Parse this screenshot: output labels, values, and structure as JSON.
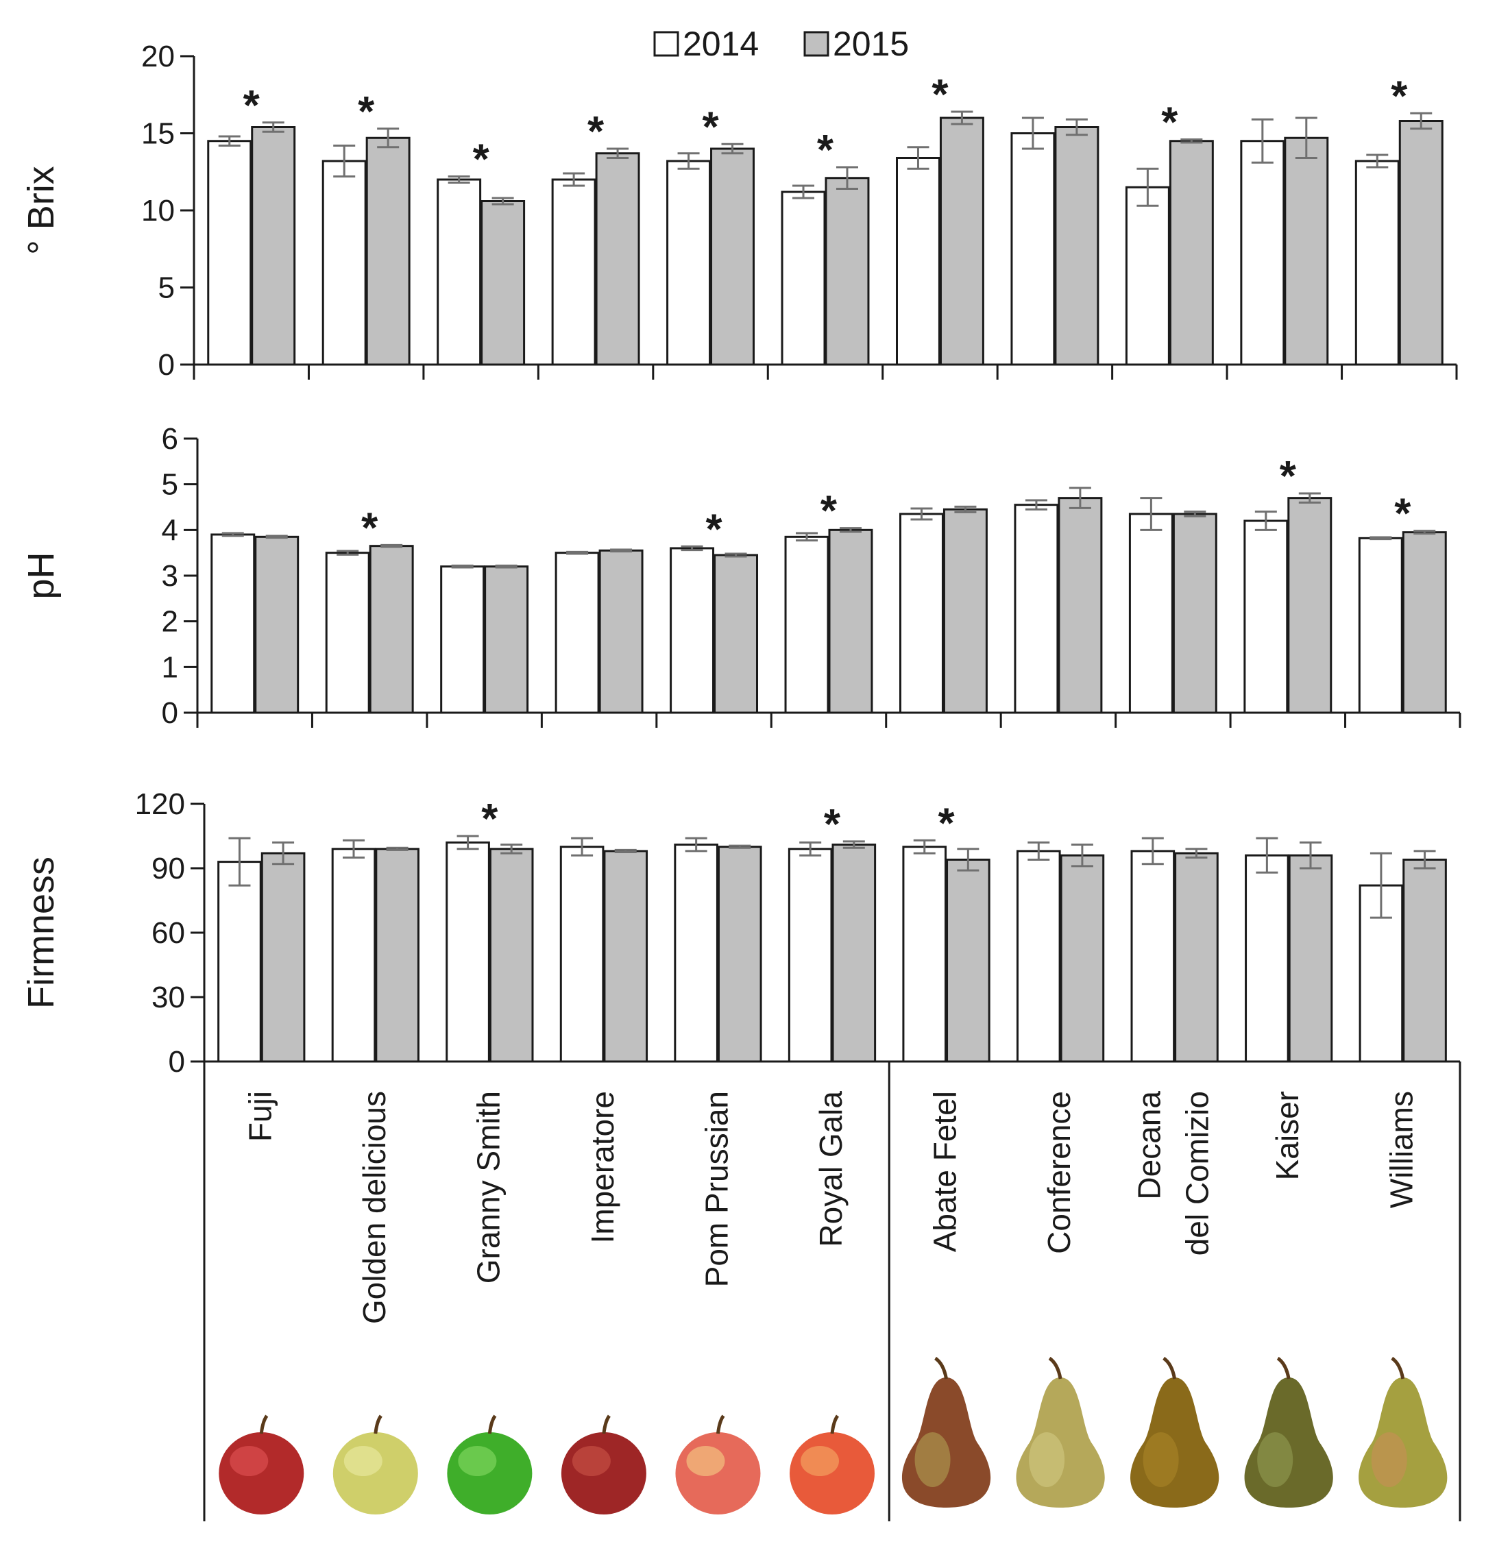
{
  "chart_data": {
    "type": "bar",
    "legend": {
      "position": "top-center",
      "items": [
        {
          "label": "2014",
          "color": "#ffffff"
        },
        {
          "label": "2015",
          "color": "#c0c0c0"
        }
      ]
    },
    "categories": [
      {
        "lines": [
          "Fuji"
        ],
        "fruit": "apple",
        "fruit_color": "#b22a2a",
        "highlight": "#e8575a"
      },
      {
        "lines": [
          "Golden delicious"
        ],
        "fruit": "apple",
        "fruit_color": "#cfcf6a",
        "highlight": "#eeeeaa"
      },
      {
        "lines": [
          "Granny Smith"
        ],
        "fruit": "apple",
        "fruit_color": "#3fae2a",
        "highlight": "#8ee06a"
      },
      {
        "lines": [
          "Imperatore"
        ],
        "fruit": "apple",
        "fruit_color": "#9e2626",
        "highlight": "#d05a4a"
      },
      {
        "lines": [
          "Pom Prussian"
        ],
        "fruit": "apple",
        "fruit_color": "#e66a5a",
        "highlight": "#f5d88a"
      },
      {
        "lines": [
          "Royal Gala"
        ],
        "fruit": "apple",
        "fruit_color": "#e85a3a",
        "highlight": "#f5b56a"
      },
      {
        "lines": [
          "Abate Fetel"
        ],
        "fruit": "pear",
        "fruit_color": "#8a4a2a",
        "highlight": "#b8b05a"
      },
      {
        "lines": [
          "Conference"
        ],
        "fruit": "pear",
        "fruit_color": "#b5a85a",
        "highlight": "#d8cf8a"
      },
      {
        "lines": [
          "Decana",
          "del Comizio"
        ],
        "fruit": "pear",
        "fruit_color": "#8a6a1a",
        "highlight": "#b08a2a"
      },
      {
        "lines": [
          "Kaiser"
        ],
        "fruit": "pear",
        "fruit_color": "#6a6a2a",
        "highlight": "#9aa55a"
      },
      {
        "lines": [
          "Williams"
        ],
        "fruit": "pear",
        "fruit_color": "#a5a040",
        "highlight": "#d08a5a"
      }
    ],
    "panels": [
      {
        "ylabel": "° Brix",
        "ylim": [
          0,
          20
        ],
        "yticks": [
          0,
          5,
          10,
          15,
          20
        ],
        "series": [
          {
            "name": "2014",
            "values": [
              14.5,
              13.2,
              12.0,
              12.0,
              13.2,
              11.2,
              13.4,
              15.0,
              11.5,
              14.5,
              13.2
            ],
            "errors": [
              0.3,
              1.0,
              0.2,
              0.4,
              0.5,
              0.4,
              0.7,
              1.0,
              1.2,
              1.4,
              0.4
            ]
          },
          {
            "name": "2015",
            "values": [
              15.4,
              14.7,
              10.6,
              13.7,
              14.0,
              12.1,
              16.0,
              15.4,
              14.5,
              14.7,
              15.8
            ],
            "errors": [
              0.3,
              0.6,
              0.2,
              0.3,
              0.3,
              0.7,
              0.4,
              0.5,
              0.1,
              1.3,
              0.5
            ]
          }
        ],
        "significant": [
          true,
          true,
          true,
          true,
          true,
          true,
          true,
          false,
          true,
          false,
          true
        ]
      },
      {
        "ylabel": "pH",
        "ylim": [
          0,
          6
        ],
        "yticks": [
          0,
          1,
          2,
          3,
          4,
          5,
          6
        ],
        "series": [
          {
            "name": "2014",
            "values": [
              3.9,
              3.5,
              3.2,
              3.5,
              3.6,
              3.85,
              4.35,
              4.55,
              4.35,
              4.2,
              3.82
            ],
            "errors": [
              0.03,
              0.04,
              0.02,
              0.02,
              0.04,
              0.08,
              0.12,
              0.1,
              0.35,
              0.2,
              0.02
            ]
          },
          {
            "name": "2015",
            "values": [
              3.85,
              3.65,
              3.2,
              3.55,
              3.45,
              4.0,
              4.45,
              4.7,
              4.35,
              4.7,
              3.95
            ],
            "errors": [
              0.02,
              0.02,
              0.02,
              0.02,
              0.03,
              0.04,
              0.06,
              0.22,
              0.05,
              0.1,
              0.03
            ]
          }
        ],
        "significant": [
          false,
          true,
          false,
          false,
          true,
          true,
          false,
          false,
          false,
          true,
          true
        ]
      },
      {
        "ylabel": "Firmness",
        "ylim": [
          0,
          120
        ],
        "yticks": [
          0,
          30,
          60,
          90,
          120
        ],
        "series": [
          {
            "name": "2014",
            "values": [
              93,
              99,
              102,
              100,
              101,
              99,
              100,
              98,
              98,
              96,
              82
            ],
            "errors": [
              11,
              4,
              3,
              4,
              3,
              3,
              3,
              4,
              6,
              8,
              15
            ]
          },
          {
            "name": "2015",
            "values": [
              97,
              99,
              99,
              98,
              100,
              101,
              94,
              96,
              97,
              96,
              94
            ],
            "errors": [
              5,
              0.5,
              2,
              0.5,
              0.5,
              1.5,
              5,
              5,
              2,
              6,
              4
            ]
          }
        ],
        "significant": [
          false,
          false,
          true,
          false,
          false,
          true,
          true,
          false,
          false,
          false,
          false
        ]
      }
    ],
    "significance_marker": "*"
  }
}
